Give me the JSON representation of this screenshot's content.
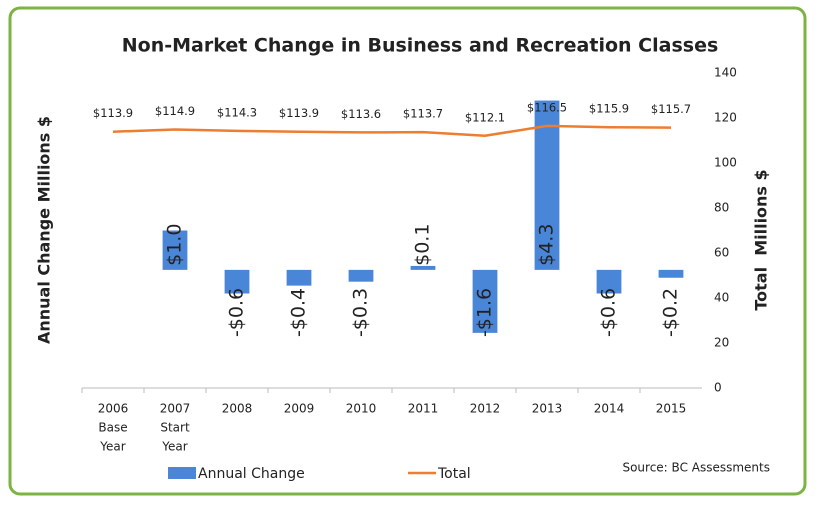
{
  "chart_data": {
    "type": "bar",
    "title": "Non-Market Change in Business and Recreation Classes",
    "y_label": "Annual Change Millions $",
    "y2_label": "Total  Millions $",
    "source": "Source: BC Assessments",
    "categories": [
      [
        "2006",
        "Base",
        "Year"
      ],
      [
        "2007",
        "Start",
        "Year"
      ],
      [
        "2008"
      ],
      [
        "2009"
      ],
      [
        "2010"
      ],
      [
        "2011"
      ],
      [
        "2012"
      ],
      [
        "2013"
      ],
      [
        "2014"
      ],
      [
        "2015"
      ]
    ],
    "ylim": [
      -3,
      5
    ],
    "y2lim": [
      0,
      140
    ],
    "y2ticks": [
      0,
      20,
      40,
      60,
      80,
      100,
      120,
      140
    ],
    "series": [
      {
        "name": "Annual Change",
        "type": "bar",
        "color": "#4a86d8",
        "values": [
          null,
          1.0,
          -0.6,
          -0.4,
          -0.3,
          0.1,
          -1.6,
          4.3,
          -0.6,
          -0.2
        ],
        "value_labels": [
          null,
          "$1.0",
          "-$0.6",
          "-$0.4",
          "-$0.3",
          "$0.1",
          "-$1.6",
          "$4.3",
          "-$0.6",
          "-$0.2"
        ]
      },
      {
        "name": "Total",
        "type": "line",
        "axis": "y2",
        "color": "#ed7d31",
        "values": [
          113.9,
          114.9,
          114.3,
          113.9,
          113.6,
          113.7,
          112.1,
          116.5,
          115.9,
          115.7
        ],
        "value_labels": [
          "$113.9",
          "$114.9",
          "$114.3",
          "$113.9",
          "$113.6",
          "$113.7",
          "$112.1",
          "$116.5",
          "$115.9",
          "$115.7"
        ]
      }
    ],
    "legend": "bottom"
  }
}
